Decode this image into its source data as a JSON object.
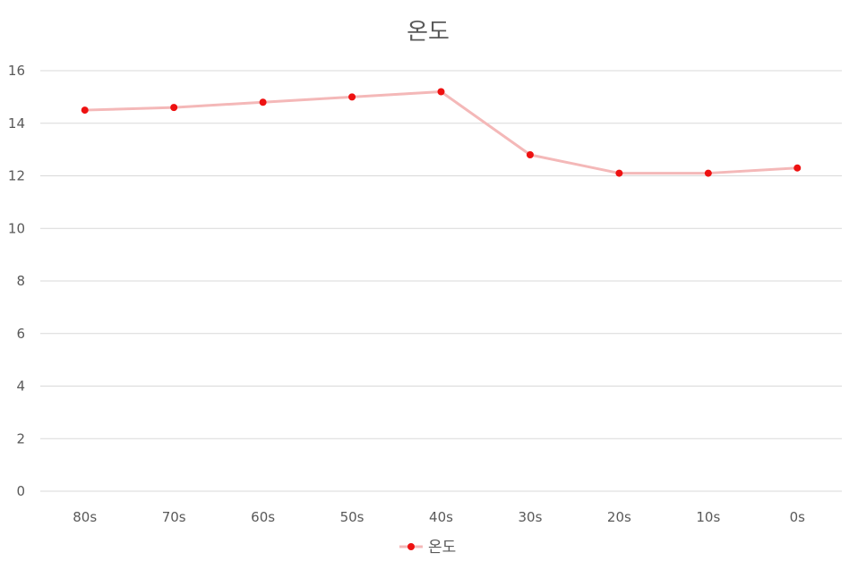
{
  "chart_data": {
    "type": "line",
    "title": "온도",
    "categories": [
      "80s",
      "70s",
      "60s",
      "50s",
      "40s",
      "30s",
      "20s",
      "10s",
      "0s"
    ],
    "series": [
      {
        "name": "온도",
        "values": [
          14.5,
          14.6,
          14.8,
          15.0,
          15.2,
          12.8,
          12.1,
          12.1,
          12.3
        ],
        "line_color": "#f4b8b8",
        "marker_color": "#ee1111"
      }
    ],
    "yticks": [
      0,
      2,
      4,
      6,
      8,
      10,
      12,
      14,
      16
    ],
    "ylim": [
      0,
      16
    ],
    "grid": true,
    "legend_position": "bottom"
  }
}
